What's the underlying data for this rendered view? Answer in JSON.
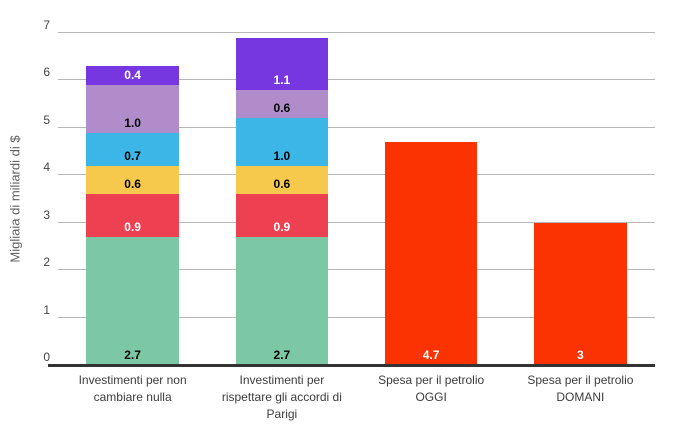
{
  "chart_data": {
    "type": "bar",
    "variant": "stacked-column",
    "title": "",
    "xlabel": "",
    "ylabel": "Migliaia di miliardi di $",
    "ylim": [
      0,
      7
    ],
    "yticks": [
      0,
      1,
      2,
      3,
      4,
      5,
      6,
      7
    ],
    "grid": true,
    "legend": "none",
    "categories": [
      "Investimenti per non cambiare nulla",
      "Investimenti per rispettare gli accordi di Parigi",
      "Spesa per il petrolio OGGI",
      "Spesa per il petrolio DOMANI"
    ],
    "bars": [
      {
        "category_lines": [
          "Investimenti per non",
          "cambiare nulla"
        ],
        "total": 6.3,
        "segments": [
          {
            "value": 2.7,
            "label": "2.7",
            "color": "#7CC8A4",
            "label_color": "#000000"
          },
          {
            "value": 0.9,
            "label": "0.9",
            "color": "#ED4051",
            "label_color": "#FFFFFF"
          },
          {
            "value": 0.6,
            "label": "0.6",
            "color": "#F6C84C",
            "label_color": "#000000"
          },
          {
            "value": 0.7,
            "label": "0.7",
            "color": "#3CB6E7",
            "label_color": "#000000"
          },
          {
            "value": 1.0,
            "label": "1.0",
            "color": "#B08CCB",
            "label_color": "#000000"
          },
          {
            "value": 0.4,
            "label": "0.4",
            "color": "#7636E0",
            "label_color": "#FFFFFF"
          }
        ]
      },
      {
        "category_lines": [
          "Investimenti per",
          "rispettare gli accordi di",
          "Parigi"
        ],
        "total": 6.9,
        "segments": [
          {
            "value": 2.7,
            "label": "2.7",
            "color": "#7CC8A4",
            "label_color": "#000000"
          },
          {
            "value": 0.9,
            "label": "0.9",
            "color": "#ED4051",
            "label_color": "#FFFFFF"
          },
          {
            "value": 0.6,
            "label": "0.6",
            "color": "#F6C84C",
            "label_color": "#000000"
          },
          {
            "value": 1.0,
            "label": "1.0",
            "color": "#3CB6E7",
            "label_color": "#000000"
          },
          {
            "value": 0.6,
            "label": "0.6",
            "color": "#B08CCB",
            "label_color": "#000000"
          },
          {
            "value": 1.1,
            "label": "1.1",
            "color": "#7636E0",
            "label_color": "#FFFFFF"
          }
        ]
      },
      {
        "category_lines": [
          "Spesa per il petrolio",
          "OGGI"
        ],
        "total": 4.7,
        "segments": [
          {
            "value": 4.7,
            "label": "4.7",
            "color": "#FB3302",
            "label_color": "#FFFFFF"
          }
        ]
      },
      {
        "category_lines": [
          "Spesa per il petrolio",
          "DOMANI"
        ],
        "total": 3,
        "segments": [
          {
            "value": 3,
            "label": "3",
            "color": "#FB3302",
            "label_color": "#FFFFFF"
          }
        ]
      }
    ],
    "styles": {
      "gridline_color": "#B7B7B7",
      "axis_line_color": "#333333",
      "tick_text_color": "#444444",
      "category_text_color": "#3C3C3C",
      "ylabel_color": "#616161",
      "background": "#FFFFFF"
    }
  }
}
